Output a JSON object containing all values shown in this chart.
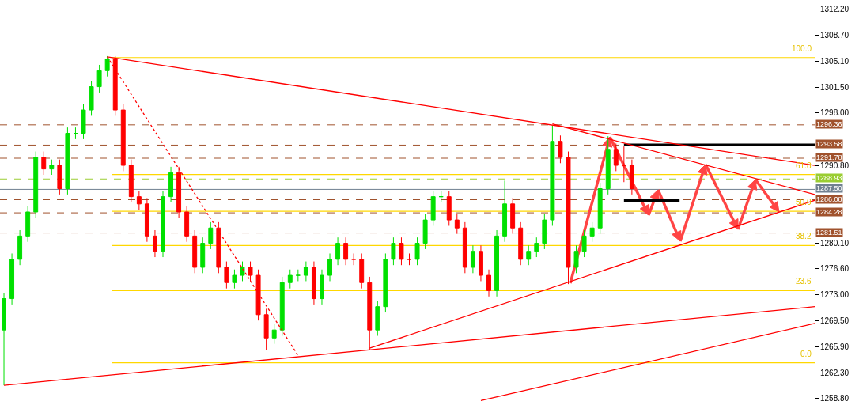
{
  "chart_data": {
    "type": "candlestick",
    "categories": [
      null,
      null,
      null,
      null,
      null,
      null,
      null,
      null,
      null,
      null,
      null,
      null,
      null,
      null,
      null,
      null,
      null,
      null,
      null,
      null,
      null,
      null,
      null,
      null,
      null,
      null,
      null,
      null,
      null,
      null,
      null,
      null,
      null,
      null,
      null,
      null,
      null,
      null,
      null,
      null,
      null,
      null,
      null,
      null,
      null,
      null,
      null,
      null,
      null,
      null,
      null,
      null,
      null,
      null,
      null,
      null,
      null,
      null,
      null,
      null,
      null,
      null,
      null,
      null,
      null,
      null,
      null,
      null,
      null,
      null,
      null,
      null,
      null,
      null,
      null,
      null,
      null,
      null,
      null,
      null,
      null,
      null,
      null,
      null,
      null,
      null,
      null,
      null,
      null,
      null,
      null,
      null,
      null,
      null,
      null,
      null,
      null,
      null,
      null,
      null,
      null,
      null,
      null
    ],
    "ohlc": [
      [
        1268.2,
        1273.3,
        1260.6,
        1272.5
      ],
      [
        1272.5,
        1278.7,
        1271.7,
        1277.9
      ],
      [
        1277.9,
        1281.9,
        1277.1,
        1281.1
      ],
      [
        1281.1,
        1285.2,
        1280.3,
        1284.4
      ],
      [
        1284.4,
        1292.7,
        1283.6,
        1291.9
      ],
      [
        1291.9,
        1292.7,
        1289.5,
        1290.3
      ],
      [
        1290.3,
        1291.6,
        1289.5,
        1290.8
      ],
      [
        1290.8,
        1291.6,
        1286.8,
        1287.6
      ],
      [
        1287.6,
        1296.0,
        1286.8,
        1295.2
      ],
      [
        1295.2,
        1296.0,
        1294.4,
        1295.2
      ],
      [
        1295.2,
        1299.2,
        1294.4,
        1298.4
      ],
      [
        1298.4,
        1302.4,
        1297.6,
        1301.6
      ],
      [
        1301.6,
        1304.6,
        1300.8,
        1303.8
      ],
      [
        1303.8,
        1305.8,
        1303.0,
        1305.4
      ],
      [
        1305.4,
        1305.8,
        1297.6,
        1298.4
      ],
      [
        1298.4,
        1299.2,
        1290.0,
        1290.8
      ],
      [
        1290.8,
        1291.6,
        1285.7,
        1286.5
      ],
      [
        1286.5,
        1287.3,
        1284.7,
        1285.5
      ],
      [
        1285.5,
        1286.3,
        1280.3,
        1281.1
      ],
      [
        1281.1,
        1281.9,
        1278.2,
        1279.0
      ],
      [
        1279.0,
        1287.3,
        1278.2,
        1286.5
      ],
      [
        1286.5,
        1290.6,
        1285.7,
        1289.8
      ],
      [
        1289.8,
        1290.6,
        1283.6,
        1284.4
      ],
      [
        1284.4,
        1285.2,
        1280.3,
        1281.1
      ],
      [
        1281.1,
        1281.9,
        1276.0,
        1276.8
      ],
      [
        1276.8,
        1280.9,
        1276.0,
        1280.1
      ],
      [
        1280.1,
        1283.0,
        1279.3,
        1282.2
      ],
      [
        1282.2,
        1283.0,
        1276.0,
        1276.8
      ],
      [
        1276.8,
        1277.6,
        1273.9,
        1274.7
      ],
      [
        1274.7,
        1276.5,
        1273.9,
        1275.7
      ],
      [
        1275.7,
        1277.6,
        1274.9,
        1276.8
      ],
      [
        1276.8,
        1277.6,
        1274.9,
        1275.7
      ],
      [
        1275.7,
        1276.5,
        1269.5,
        1270.3
      ],
      [
        1270.3,
        1271.1,
        1265.5,
        1267.1
      ],
      [
        1267.1,
        1269.0,
        1266.3,
        1268.2
      ],
      [
        1268.2,
        1275.5,
        1267.4,
        1274.7
      ],
      [
        1274.7,
        1276.5,
        1273.9,
        1275.7
      ],
      [
        1275.7,
        1276.5,
        1274.9,
        1275.7
      ],
      [
        1275.7,
        1277.6,
        1274.9,
        1276.8
      ],
      [
        1276.8,
        1277.6,
        1271.7,
        1272.5
      ],
      [
        1272.5,
        1276.5,
        1271.7,
        1275.7
      ],
      [
        1275.7,
        1278.7,
        1274.9,
        1277.9
      ],
      [
        1277.9,
        1280.9,
        1277.1,
        1280.1
      ],
      [
        1280.1,
        1280.9,
        1277.1,
        1277.9
      ],
      [
        1277.9,
        1278.7,
        1277.1,
        1277.9
      ],
      [
        1277.9,
        1278.7,
        1273.9,
        1274.7
      ],
      [
        1274.7,
        1275.5,
        1265.5,
        1268.2
      ],
      [
        1268.2,
        1272.2,
        1267.4,
        1271.4
      ],
      [
        1271.4,
        1278.7,
        1270.6,
        1277.9
      ],
      [
        1277.9,
        1280.9,
        1277.1,
        1280.1
      ],
      [
        1280.1,
        1280.9,
        1277.1,
        1277.9
      ],
      [
        1277.9,
        1278.7,
        1277.1,
        1277.9
      ],
      [
        1277.9,
        1280.9,
        1277.1,
        1280.1
      ],
      [
        1280.1,
        1284.1,
        1279.3,
        1283.3
      ],
      [
        1283.3,
        1287.3,
        1282.5,
        1286.5
      ],
      [
        1286.5,
        1287.3,
        1285.7,
        1286.5
      ],
      [
        1286.5,
        1287.3,
        1282.5,
        1283.3
      ],
      [
        1283.3,
        1284.1,
        1281.4,
        1282.2
      ],
      [
        1282.2,
        1283.0,
        1276.0,
        1276.8
      ],
      [
        1276.8,
        1279.8,
        1276.0,
        1279.0
      ],
      [
        1279.0,
        1279.8,
        1274.9,
        1275.7
      ],
      [
        1275.7,
        1276.5,
        1272.8,
        1273.6
      ],
      [
        1273.6,
        1281.9,
        1272.8,
        1281.1
      ],
      [
        1281.1,
        1288.7,
        1280.3,
        1285.5
      ],
      [
        1285.5,
        1286.3,
        1281.4,
        1282.2
      ],
      [
        1282.2,
        1283.0,
        1277.1,
        1277.9
      ],
      [
        1277.9,
        1279.8,
        1277.1,
        1279.0
      ],
      [
        1279.0,
        1280.9,
        1278.2,
        1280.1
      ],
      [
        1280.1,
        1284.1,
        1279.3,
        1283.3
      ],
      [
        1283.3,
        1296.3,
        1282.5,
        1294.1
      ],
      [
        1294.1,
        1294.9,
        1291.1,
        1291.9
      ],
      [
        1291.9,
        1292.7,
        1274.5,
        1276.8
      ],
      [
        1276.8,
        1279.8,
        1276.0,
        1279.0
      ],
      [
        1279.0,
        1281.9,
        1278.2,
        1281.1
      ],
      [
        1281.1,
        1283.0,
        1280.3,
        1282.2
      ],
      [
        1282.2,
        1288.4,
        1281.4,
        1287.6
      ],
      [
        1287.6,
        1294.8,
        1286.8,
        1293.0
      ],
      [
        1293.0,
        1293.8,
        1290.0,
        1290.8
      ],
      [
        1290.8,
        1293.4,
        1288.5,
        1290.8
      ],
      [
        1290.8,
        1291.6,
        1286.8,
        1287.6
      ],
      null,
      null,
      null,
      null,
      null,
      null,
      null,
      null,
      null,
      null,
      null,
      null,
      null,
      null,
      null,
      null,
      null,
      null,
      null,
      null,
      null,
      null,
      null
    ],
    "series": [
      {
        "type": "line",
        "color": "#ff0000",
        "line_style": "solid",
        "values": [
          null,
          null,
          null,
          null,
          null,
          null,
          null,
          null,
          null,
          null,
          null,
          null,
          null,
          1305.7,
          null,
          null,
          null,
          null,
          null,
          null,
          null,
          null,
          null,
          null,
          null,
          null,
          null,
          null,
          null,
          null,
          null,
          null,
          null,
          null,
          null,
          null,
          null,
          null,
          null,
          null,
          null,
          null,
          null,
          null,
          null,
          null,
          null,
          null,
          null,
          null,
          null,
          null,
          null,
          null,
          null,
          null,
          null,
          null,
          null,
          null,
          null,
          null,
          null,
          null,
          null,
          null,
          null,
          null,
          null,
          null,
          null,
          null,
          null,
          null,
          null,
          null,
          null,
          null,
          null,
          null,
          null,
          null,
          null,
          null,
          null,
          null,
          null,
          null,
          null,
          null,
          null,
          null,
          null,
          null,
          null,
          null,
          null,
          null,
          null,
          null,
          null,
          null,
          1290.8
        ]
      },
      {
        "type": "line",
        "color": "#ff0000",
        "line_style": "solid",
        "values": [
          null,
          null,
          null,
          null,
          null,
          null,
          null,
          null,
          null,
          null,
          null,
          null,
          null,
          null,
          null,
          null,
          null,
          null,
          null,
          null,
          null,
          null,
          null,
          null,
          null,
          null,
          null,
          null,
          null,
          null,
          null,
          null,
          null,
          null,
          null,
          null,
          null,
          null,
          null,
          null,
          null,
          null,
          null,
          null,
          null,
          null,
          null,
          null,
          null,
          null,
          null,
          null,
          null,
          null,
          null,
          null,
          null,
          null,
          null,
          null,
          null,
          null,
          null,
          null,
          null,
          null,
          null,
          null,
          null,
          1296.5,
          null,
          null,
          null,
          null,
          null,
          null,
          null,
          null,
          null,
          null,
          null,
          null,
          null,
          null,
          null,
          null,
          null,
          null,
          null,
          null,
          null,
          null,
          null,
          null,
          null,
          null,
          null,
          null,
          null,
          null,
          null,
          null,
          1286.8
        ]
      },
      {
        "type": "line",
        "color": "#ff0000",
        "line_style": "solid",
        "values": [
          null,
          null,
          null,
          null,
          null,
          null,
          null,
          null,
          null,
          null,
          null,
          null,
          null,
          null,
          null,
          null,
          null,
          null,
          null,
          null,
          null,
          null,
          null,
          null,
          null,
          null,
          null,
          null,
          null,
          null,
          null,
          null,
          null,
          null,
          null,
          null,
          null,
          null,
          null,
          null,
          null,
          null,
          null,
          null,
          null,
          null,
          1265.7,
          null,
          null,
          null,
          null,
          null,
          null,
          null,
          null,
          null,
          null,
          null,
          null,
          null,
          null,
          null,
          null,
          null,
          null,
          null,
          null,
          null,
          null,
          null,
          null,
          null,
          null,
          null,
          null,
          null,
          null,
          null,
          null,
          null,
          null,
          null,
          null,
          null,
          null,
          null,
          null,
          null,
          null,
          null,
          null,
          null,
          null,
          null,
          null,
          null,
          null,
          null,
          null,
          null,
          null,
          null,
          1286.0
        ]
      },
      {
        "type": "line",
        "color": "#ff0000",
        "line_style": "solid",
        "values": [
          1260.6,
          null,
          null,
          null,
          null,
          null,
          null,
          null,
          null,
          null,
          null,
          null,
          null,
          null,
          null,
          null,
          null,
          null,
          null,
          null,
          null,
          null,
          null,
          null,
          null,
          null,
          null,
          null,
          null,
          null,
          null,
          null,
          null,
          null,
          null,
          null,
          null,
          null,
          null,
          null,
          null,
          null,
          null,
          null,
          null,
          null,
          null,
          null,
          null,
          null,
          null,
          null,
          null,
          null,
          null,
          null,
          null,
          null,
          null,
          null,
          null,
          null,
          null,
          null,
          null,
          null,
          null,
          null,
          null,
          null,
          null,
          null,
          null,
          null,
          null,
          null,
          null,
          null,
          null,
          null,
          null,
          null,
          null,
          null,
          null,
          null,
          null,
          null,
          null,
          null,
          null,
          null,
          null,
          null,
          null,
          null,
          null,
          null,
          null,
          null,
          null,
          null,
          1271.4
        ]
      },
      {
        "type": "line",
        "color": "#ff0000",
        "line_style": "solid",
        "values": [
          null,
          null,
          null,
          null,
          null,
          null,
          null,
          null,
          null,
          null,
          null,
          null,
          null,
          null,
          null,
          null,
          null,
          null,
          null,
          null,
          null,
          null,
          null,
          null,
          null,
          null,
          null,
          null,
          null,
          null,
          null,
          null,
          null,
          null,
          null,
          null,
          null,
          null,
          null,
          null,
          null,
          null,
          null,
          null,
          null,
          null,
          null,
          null,
          null,
          null,
          null,
          null,
          null,
          null,
          null,
          null,
          null,
          null,
          null,
          null,
          1258.5,
          null,
          null,
          null,
          null,
          null,
          null,
          null,
          null,
          null,
          null,
          null,
          null,
          null,
          null,
          null,
          null,
          null,
          null,
          null,
          null,
          null,
          null,
          null,
          null,
          null,
          null,
          null,
          null,
          null,
          null,
          null,
          null,
          null,
          null,
          null,
          null,
          null,
          null,
          null,
          null,
          null,
          1269.1
        ]
      },
      {
        "type": "line",
        "color": "#ff0000",
        "line_style": "dotted",
        "values": [
          null,
          null,
          null,
          null,
          null,
          null,
          null,
          null,
          null,
          null,
          null,
          null,
          null,
          1305.7,
          null,
          null,
          null,
          null,
          null,
          null,
          null,
          null,
          null,
          null,
          null,
          null,
          null,
          null,
          null,
          null,
          null,
          null,
          null,
          null,
          null,
          null,
          null,
          1264.7,
          null,
          null,
          null,
          null,
          null,
          null,
          null,
          null,
          null,
          null,
          null,
          null,
          null,
          null,
          null,
          null,
          null,
          null,
          null,
          null,
          null,
          null,
          null,
          null,
          null,
          null,
          null,
          null,
          null,
          null,
          null,
          null,
          null,
          null,
          null,
          null,
          null,
          null,
          null,
          null,
          null,
          null,
          null,
          null,
          null,
          null,
          null,
          null,
          null,
          null,
          null,
          null,
          null,
          null,
          null,
          null,
          null,
          null,
          null,
          null,
          null,
          null,
          null,
          null,
          null
        ]
      },
      {
        "type": "line",
        "color": "#000000",
        "line_style": "solid",
        "values": [
          null,
          null,
          null,
          null,
          null,
          null,
          null,
          null,
          null,
          null,
          null,
          null,
          null,
          null,
          null,
          null,
          null,
          null,
          null,
          null,
          null,
          null,
          null,
          null,
          null,
          null,
          null,
          null,
          null,
          null,
          null,
          null,
          null,
          null,
          null,
          null,
          null,
          null,
          null,
          null,
          null,
          null,
          null,
          null,
          null,
          null,
          null,
          null,
          null,
          null,
          null,
          null,
          null,
          null,
          null,
          null,
          null,
          null,
          null,
          null,
          null,
          null,
          null,
          null,
          null,
          null,
          null,
          null,
          null,
          null,
          null,
          null,
          null,
          null,
          null,
          null,
          null,
          null,
          1293.6,
          null,
          null,
          null,
          null,
          null,
          null,
          null,
          null,
          null,
          null,
          null,
          null,
          null,
          null,
          null,
          null,
          null,
          null,
          null,
          null,
          null,
          null,
          null,
          1293.6
        ]
      },
      {
        "type": "line",
        "color": "#000000",
        "line_style": "solid",
        "values": [
          null,
          null,
          null,
          null,
          null,
          null,
          null,
          null,
          null,
          null,
          null,
          null,
          null,
          null,
          null,
          null,
          null,
          null,
          null,
          null,
          null,
          null,
          null,
          null,
          null,
          null,
          null,
          null,
          null,
          null,
          null,
          null,
          null,
          null,
          null,
          null,
          null,
          null,
          null,
          null,
          null,
          null,
          null,
          null,
          null,
          null,
          null,
          null,
          null,
          null,
          null,
          null,
          null,
          null,
          null,
          null,
          null,
          null,
          null,
          null,
          null,
          null,
          null,
          null,
          null,
          null,
          null,
          null,
          null,
          null,
          null,
          null,
          null,
          null,
          null,
          null,
          null,
          null,
          1286.0,
          null,
          null,
          null,
          null,
          null,
          null,
          1286.0,
          null,
          null,
          null,
          null,
          null,
          null,
          null,
          null,
          null,
          null,
          null,
          null,
          null,
          null,
          null,
          null,
          null
        ]
      }
    ],
    "ref_lines": [
      {
        "axis": "y",
        "value": 1296.36,
        "label": "1296.36",
        "color": "#a0522d",
        "line_style": "dashed"
      },
      {
        "axis": "y",
        "value": 1293.58,
        "label": "1293.58",
        "color": "#a0522d",
        "line_style": "dashed"
      },
      {
        "axis": "y",
        "value": 1291.78,
        "label": "1291.78",
        "color": "#a0522d",
        "line_style": "dashed"
      },
      {
        "axis": "y",
        "value": 1288.93,
        "label": "1288.93",
        "color": "#9acd32",
        "line_style": "dashed"
      },
      {
        "axis": "y",
        "value": 1287.5,
        "label": "1287.50",
        "color": "#708090",
        "line_style": "solid"
      },
      {
        "axis": "y",
        "value": 1286.08,
        "label": "1286.08",
        "color": "#a0522d",
        "line_style": "dashed"
      },
      {
        "axis": "y",
        "value": 1284.28,
        "label": "1284.28",
        "color": "#a0522d",
        "line_style": "dashed"
      },
      {
        "axis": "y",
        "value": 1281.51,
        "label": "1281.51",
        "color": "#a0522d",
        "line_style": "dashed"
      },
      {
        "axis": "y",
        "value": 1305.6,
        "color": "#ffd700"
      },
      {
        "axis": "y",
        "value": 1289.55,
        "color": "#ffd700"
      },
      {
        "axis": "y",
        "value": 1284.5,
        "color": "#ffd700"
      },
      {
        "axis": "y",
        "value": 1279.8,
        "color": "#ffd700"
      },
      {
        "axis": "y",
        "value": 1273.6,
        "color": "#ffd700"
      },
      {
        "axis": "y",
        "value": 1263.7,
        "color": "#ffd700"
      }
    ],
    "annotations": [
      {
        "text": "100.0",
        "y": 1305.6
      },
      {
        "text": "61.8",
        "y": 1289.55
      },
      {
        "text": "50.0",
        "y": 1284.5
      },
      {
        "text": "38.2",
        "y": 1279.8
      },
      {
        "text": "23.6",
        "y": 1273.6
      },
      {
        "text": "0.0",
        "y": 1263.7
      }
    ],
    "ylim": [
      1257.9,
      1313.5
    ],
    "yticks": [
      {
        "value": 1312.2,
        "label": "1312.20"
      },
      {
        "value": 1308.7,
        "label": "1308.70"
      },
      {
        "value": 1305.1,
        "label": "1305.10"
      },
      {
        "value": 1301.5,
        "label": "1301.50"
      },
      {
        "value": 1298,
        "label": "1298.00"
      },
      {
        "value": 1290.8,
        "label": "1290.80"
      },
      {
        "value": 1280.1,
        "label": "1280.10"
      },
      {
        "value": 1276.6,
        "label": "1276.60"
      },
      {
        "value": 1273,
        "label": "1273.00"
      },
      {
        "value": 1269.5,
        "label": "1269.50"
      },
      {
        "value": 1265.9,
        "label": "1265.90"
      },
      {
        "value": 1262.3,
        "label": "1262.30"
      },
      {
        "value": 1258.8,
        "label": "1258.80"
      }
    ],
    "tick_labels": "y",
    "grid": false
  }
}
